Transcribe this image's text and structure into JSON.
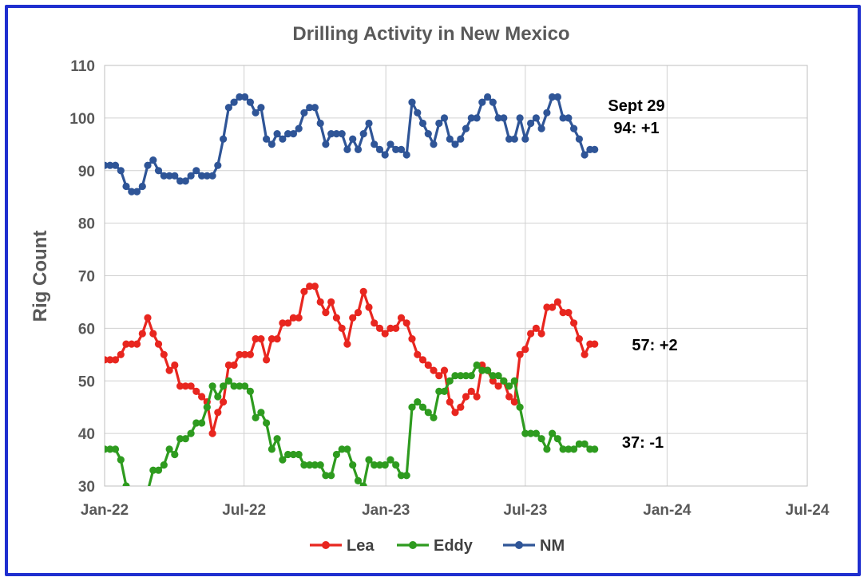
{
  "chart_data": {
    "type": "line",
    "title": "Drilling Activity in New Mexico",
    "xlabel": "",
    "ylabel": "Rig Count",
    "ylim": [
      30,
      110
    ],
    "yticks": [
      "30",
      "40",
      "50",
      "60",
      "70",
      "80",
      "90",
      "100",
      "110"
    ],
    "xlim": [
      "2022-01-01",
      "2024-07-01"
    ],
    "xticks": [
      {
        "date": "2022-01-01",
        "label": "Jan-22"
      },
      {
        "date": "2022-07-01",
        "label": "Jul-22"
      },
      {
        "date": "2023-01-01",
        "label": "Jan-23"
      },
      {
        "date": "2023-07-01",
        "label": "Jul-23"
      },
      {
        "date": "2024-01-01",
        "label": "Jan-24"
      },
      {
        "date": "2024-07-01",
        "label": "Jul-24"
      }
    ],
    "grid": true,
    "legend_position": "bottom",
    "x": [
      "2022-01-01",
      "2022-01-08",
      "2022-01-15",
      "2022-01-22",
      "2022-01-29",
      "2022-02-05",
      "2022-02-12",
      "2022-02-19",
      "2022-02-26",
      "2022-03-05",
      "2022-03-12",
      "2022-03-19",
      "2022-03-26",
      "2022-04-02",
      "2022-04-09",
      "2022-04-16",
      "2022-04-23",
      "2022-04-30",
      "2022-05-07",
      "2022-05-14",
      "2022-05-21",
      "2022-05-28",
      "2022-06-04",
      "2022-06-11",
      "2022-06-18",
      "2022-06-25",
      "2022-07-02",
      "2022-07-09",
      "2022-07-16",
      "2022-07-23",
      "2022-07-30",
      "2022-08-06",
      "2022-08-13",
      "2022-08-20",
      "2022-08-27",
      "2022-09-03",
      "2022-09-10",
      "2022-09-17",
      "2022-09-24",
      "2022-10-01",
      "2022-10-08",
      "2022-10-15",
      "2022-10-22",
      "2022-10-29",
      "2022-11-05",
      "2022-11-12",
      "2022-11-19",
      "2022-11-26",
      "2022-12-03",
      "2022-12-10",
      "2022-12-17",
      "2022-12-24",
      "2022-12-31",
      "2023-01-07",
      "2023-01-14",
      "2023-01-21",
      "2023-01-28",
      "2023-02-04",
      "2023-02-11",
      "2023-02-18",
      "2023-02-25",
      "2023-03-04",
      "2023-03-11",
      "2023-03-18",
      "2023-03-25",
      "2023-04-01",
      "2023-04-08",
      "2023-04-15",
      "2023-04-22",
      "2023-04-29",
      "2023-05-06",
      "2023-05-13",
      "2023-05-20",
      "2023-05-27",
      "2023-06-03",
      "2023-06-10",
      "2023-06-17",
      "2023-06-24",
      "2023-07-01",
      "2023-07-08",
      "2023-07-15",
      "2023-07-22",
      "2023-07-29",
      "2023-08-05",
      "2023-08-12",
      "2023-08-19",
      "2023-08-26",
      "2023-09-02",
      "2023-09-09",
      "2023-09-16",
      "2023-09-23",
      "2023-09-29"
    ],
    "series": [
      {
        "name": "Lea",
        "color": "#e8261f",
        "values": [
          54,
          54,
          54,
          55,
          57,
          57,
          57,
          59,
          62,
          59,
          57,
          55,
          52,
          53,
          49,
          49,
          49,
          48,
          47,
          46,
          40,
          44,
          46,
          53,
          53,
          55,
          55,
          55,
          58,
          58,
          54,
          58,
          58,
          61,
          61,
          62,
          62,
          67,
          68,
          68,
          65,
          63,
          65,
          62,
          60,
          57,
          62,
          63,
          67,
          64,
          61,
          60,
          59,
          60,
          60,
          62,
          61,
          58,
          55,
          54,
          53,
          52,
          51,
          52,
          46,
          44,
          45,
          47,
          48,
          47,
          53,
          52,
          50,
          49,
          50,
          47,
          46,
          55,
          56,
          59,
          60,
          59,
          64,
          64,
          65,
          63,
          63,
          61,
          58,
          55,
          57,
          57
        ]
      },
      {
        "name": "Eddy",
        "color": "#2e9b1f",
        "values": [
          37,
          37,
          37,
          35,
          30,
          29,
          28,
          27,
          29,
          33,
          33,
          34,
          37,
          36,
          39,
          39,
          40,
          42,
          42,
          45,
          49,
          47,
          49,
          50,
          49,
          49,
          49,
          48,
          43,
          44,
          42,
          37,
          39,
          35,
          36,
          36,
          36,
          34,
          34,
          34,
          34,
          32,
          32,
          36,
          37,
          37,
          34,
          31,
          30,
          35,
          34,
          34,
          34,
          35,
          34,
          32,
          32,
          45,
          46,
          45,
          44,
          43,
          48,
          48,
          50,
          51,
          51,
          51,
          51,
          53,
          52,
          52,
          51,
          51,
          50,
          49,
          50,
          45,
          40,
          40,
          40,
          39,
          37,
          40,
          39,
          37,
          37,
          37,
          38,
          38,
          37,
          37
        ]
      },
      {
        "name": "NM",
        "color": "#2f5597",
        "values": [
          91,
          91,
          91,
          90,
          87,
          86,
          86,
          87,
          91,
          92,
          90,
          89,
          89,
          89,
          88,
          88,
          89,
          90,
          89,
          89,
          89,
          91,
          96,
          102,
          103,
          104,
          104,
          103,
          101,
          102,
          96,
          95,
          97,
          96,
          97,
          97,
          98,
          101,
          102,
          102,
          99,
          95,
          97,
          97,
          97,
          94,
          96,
          94,
          97,
          99,
          95,
          94,
          93,
          95,
          94,
          94,
          93,
          103,
          101,
          99,
          97,
          95,
          99,
          100,
          96,
          95,
          96,
          98,
          100,
          100,
          103,
          104,
          103,
          100,
          100,
          96,
          96,
          100,
          96,
          99,
          100,
          98,
          101,
          104,
          104,
          100,
          100,
          98,
          96,
          93,
          94,
          94
        ]
      }
    ],
    "annotations": [
      {
        "text": "Sept 29",
        "series": "NM"
      },
      {
        "text": "94: +1",
        "series": "NM"
      },
      {
        "text": "57: +2",
        "series": "Lea"
      },
      {
        "text": "37: -1",
        "series": "Eddy"
      }
    ]
  }
}
